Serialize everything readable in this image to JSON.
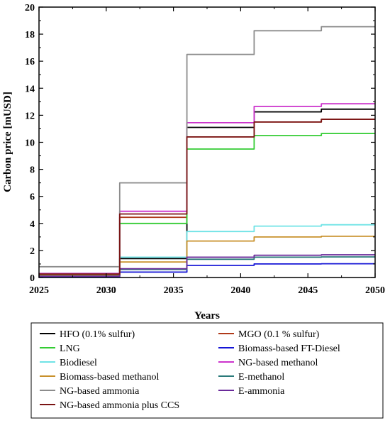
{
  "chart_data": {
    "type": "line",
    "xlabel": "Years",
    "ylabel": "Carbon price [mUSD]",
    "xlim": [
      2025,
      2050
    ],
    "ylim": [
      0,
      20
    ],
    "xticks": [
      2025,
      2030,
      2035,
      2040,
      2045,
      2050
    ],
    "yticks": [
      0,
      2,
      4,
      6,
      8,
      10,
      12,
      14,
      16,
      18,
      20
    ],
    "grid": false,
    "legend_position": "below",
    "x": [
      2025,
      2026,
      2027,
      2028,
      2029,
      2030,
      2031,
      2032,
      2033,
      2034,
      2035,
      2036,
      2037,
      2038,
      2039,
      2040,
      2041,
      2042,
      2043,
      2044,
      2045,
      2046,
      2047,
      2048,
      2049,
      2050
    ],
    "series": [
      {
        "name": "HFO (0.1% sulfur)",
        "color": "#000000",
        "values": [
          0.25,
          0.25,
          0.25,
          0.25,
          0.25,
          0.25,
          1.4,
          1.4,
          1.4,
          1.4,
          1.4,
          11.1,
          11.1,
          11.1,
          11.1,
          11.1,
          12.25,
          12.25,
          12.25,
          12.25,
          12.25,
          12.45,
          12.45,
          12.45,
          12.45,
          12.45
        ]
      },
      {
        "name": "MGO (0.1 % sulfur)",
        "color": "#b03a1a",
        "values": [
          0.25,
          0.25,
          0.25,
          0.25,
          0.25,
          0.25,
          4.45,
          4.45,
          4.45,
          4.45,
          4.45,
          10.4,
          10.4,
          10.4,
          10.4,
          10.4,
          11.5,
          11.5,
          11.5,
          11.5,
          11.5,
          11.7,
          11.7,
          11.7,
          11.7,
          11.7
        ]
      },
      {
        "name": "LNG",
        "color": "#33cc33",
        "values": [
          0.2,
          0.2,
          0.2,
          0.2,
          0.2,
          0.2,
          4.0,
          4.0,
          4.0,
          4.0,
          4.0,
          9.5,
          9.5,
          9.5,
          9.5,
          9.5,
          10.5,
          10.5,
          10.5,
          10.5,
          10.5,
          10.65,
          10.65,
          10.65,
          10.65,
          10.65
        ]
      },
      {
        "name": "Biomass-based FT-Diesel",
        "color": "#1515d6",
        "values": [
          0.05,
          0.05,
          0.05,
          0.05,
          0.05,
          0.05,
          0.4,
          0.4,
          0.4,
          0.4,
          0.4,
          0.9,
          0.9,
          0.9,
          0.9,
          0.9,
          1.0,
          1.0,
          1.0,
          1.0,
          1.0,
          1.02,
          1.02,
          1.02,
          1.02,
          1.02
        ]
      },
      {
        "name": "Biodiesel",
        "color": "#6fe3e6",
        "values": [
          0.3,
          0.3,
          0.3,
          0.3,
          0.3,
          0.3,
          1.5,
          1.5,
          1.5,
          1.5,
          1.5,
          3.4,
          3.4,
          3.4,
          3.4,
          3.4,
          3.8,
          3.8,
          3.8,
          3.8,
          3.8,
          3.9,
          3.9,
          3.9,
          3.9,
          3.9
        ]
      },
      {
        "name": "NG-based methanol",
        "color": "#cc33cc",
        "values": [
          0.3,
          0.3,
          0.3,
          0.3,
          0.3,
          0.3,
          4.9,
          4.9,
          4.9,
          4.9,
          4.9,
          11.45,
          11.45,
          11.45,
          11.45,
          11.45,
          12.65,
          12.65,
          12.65,
          12.65,
          12.65,
          12.85,
          12.85,
          12.85,
          12.85,
          12.85
        ]
      },
      {
        "name": "Biomass-based methanol",
        "color": "#c8902a",
        "values": [
          0.15,
          0.15,
          0.15,
          0.15,
          0.15,
          0.15,
          1.15,
          1.15,
          1.15,
          1.15,
          1.15,
          2.7,
          2.7,
          2.7,
          2.7,
          2.7,
          3.0,
          3.0,
          3.0,
          3.0,
          3.0,
          3.05,
          3.05,
          3.05,
          3.05,
          3.05
        ]
      },
      {
        "name": "E-methanol",
        "color": "#2a7a7a",
        "values": [
          0.1,
          0.1,
          0.1,
          0.1,
          0.1,
          0.1,
          0.6,
          0.6,
          0.6,
          0.6,
          0.6,
          1.35,
          1.35,
          1.35,
          1.35,
          1.35,
          1.5,
          1.5,
          1.5,
          1.5,
          1.5,
          1.52,
          1.52,
          1.52,
          1.52,
          1.52
        ]
      },
      {
        "name": "NG-based ammonia",
        "color": "#8c8c8c",
        "values": [
          0.8,
          0.8,
          0.8,
          0.8,
          0.8,
          0.8,
          7.0,
          7.0,
          7.0,
          7.0,
          7.0,
          16.5,
          16.5,
          16.5,
          16.5,
          16.5,
          18.25,
          18.25,
          18.25,
          18.25,
          18.25,
          18.55,
          18.55,
          18.55,
          18.55,
          18.55
        ]
      },
      {
        "name": "E-ammonia",
        "color": "#6a2a9a",
        "values": [
          0.1,
          0.1,
          0.1,
          0.1,
          0.1,
          0.1,
          0.65,
          0.65,
          0.65,
          0.65,
          0.65,
          1.5,
          1.5,
          1.5,
          1.5,
          1.5,
          1.65,
          1.65,
          1.65,
          1.65,
          1.65,
          1.68,
          1.68,
          1.68,
          1.68,
          1.68
        ]
      },
      {
        "name": "NG-based ammonia plus CCS",
        "color": "#7a1414",
        "values": [
          0.25,
          0.25,
          0.25,
          0.25,
          0.25,
          0.25,
          4.7,
          4.7,
          4.7,
          4.7,
          4.7,
          10.4,
          10.4,
          10.4,
          10.4,
          10.4,
          11.5,
          11.5,
          11.5,
          11.5,
          11.5,
          11.7,
          11.7,
          11.7,
          11.7,
          11.7
        ]
      }
    ]
  }
}
